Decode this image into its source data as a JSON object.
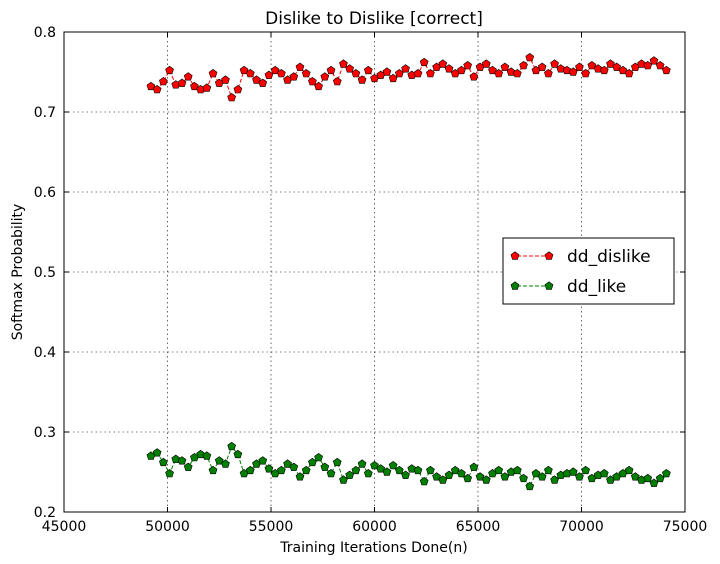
{
  "chart_data": {
    "type": "line",
    "title": "Dislike to Dislike [correct]",
    "xlabel": "Training Iterations Done(n)",
    "ylabel": "Softmax Probability",
    "xlim": [
      45000,
      75000
    ],
    "ylim": [
      0.2,
      0.8
    ],
    "xticks": [
      45000,
      50000,
      55000,
      60000,
      65000,
      70000,
      75000
    ],
    "yticks": [
      0.2,
      0.3,
      0.4,
      0.5,
      0.6,
      0.7,
      0.8
    ],
    "xtick_labels": [
      "45000",
      "50000",
      "55000",
      "60000",
      "65000",
      "70000",
      "75000"
    ],
    "ytick_labels": [
      "0.2",
      "0.3",
      "0.4",
      "0.5",
      "0.6",
      "0.7",
      "0.8"
    ],
    "grid": true,
    "legend_position": "center-right",
    "x": [
      49200,
      49500,
      49800,
      50100,
      50400,
      50700,
      51000,
      51300,
      51600,
      51900,
      52200,
      52500,
      52800,
      53100,
      53400,
      53700,
      54000,
      54300,
      54600,
      54900,
      55200,
      55500,
      55800,
      56100,
      56400,
      56700,
      57000,
      57300,
      57600,
      57900,
      58200,
      58500,
      58800,
      59100,
      59400,
      59700,
      60000,
      60300,
      60600,
      60900,
      61200,
      61500,
      61800,
      62100,
      62400,
      62700,
      63000,
      63300,
      63600,
      63900,
      64200,
      64500,
      64800,
      65100,
      65400,
      65700,
      66000,
      66300,
      66600,
      66900,
      67200,
      67500,
      67800,
      68100,
      68400,
      68700,
      69000,
      69300,
      69600,
      69900,
      70200,
      70500,
      70800,
      71100,
      71400,
      71700,
      72000,
      72300,
      72600,
      72900,
      73200,
      73500,
      73800,
      74100
    ],
    "series": [
      {
        "name": "dd_dislike",
        "color": "#ff0000",
        "values": [
          0.732,
          0.728,
          0.738,
          0.752,
          0.734,
          0.736,
          0.744,
          0.732,
          0.728,
          0.73,
          0.748,
          0.736,
          0.74,
          0.718,
          0.728,
          0.752,
          0.748,
          0.74,
          0.736,
          0.746,
          0.752,
          0.748,
          0.74,
          0.744,
          0.756,
          0.748,
          0.738,
          0.732,
          0.744,
          0.752,
          0.738,
          0.76,
          0.754,
          0.748,
          0.74,
          0.752,
          0.742,
          0.746,
          0.75,
          0.742,
          0.748,
          0.754,
          0.746,
          0.748,
          0.762,
          0.748,
          0.756,
          0.76,
          0.754,
          0.748,
          0.752,
          0.758,
          0.744,
          0.756,
          0.76,
          0.752,
          0.748,
          0.756,
          0.75,
          0.748,
          0.758,
          0.768,
          0.752,
          0.756,
          0.748,
          0.76,
          0.754,
          0.752,
          0.75,
          0.756,
          0.748,
          0.758,
          0.754,
          0.752,
          0.76,
          0.756,
          0.752,
          0.748,
          0.756,
          0.76,
          0.758,
          0.764,
          0.758,
          0.752
        ]
      },
      {
        "name": "dd_like",
        "color": "#007f00",
        "values": [
          0.27,
          0.274,
          0.262,
          0.248,
          0.266,
          0.264,
          0.256,
          0.268,
          0.272,
          0.27,
          0.252,
          0.264,
          0.26,
          0.282,
          0.272,
          0.248,
          0.252,
          0.26,
          0.264,
          0.254,
          0.248,
          0.252,
          0.26,
          0.256,
          0.244,
          0.252,
          0.262,
          0.268,
          0.256,
          0.248,
          0.262,
          0.24,
          0.246,
          0.252,
          0.26,
          0.248,
          0.258,
          0.254,
          0.25,
          0.258,
          0.252,
          0.246,
          0.254,
          0.252,
          0.238,
          0.252,
          0.244,
          0.24,
          0.246,
          0.252,
          0.248,
          0.242,
          0.256,
          0.244,
          0.24,
          0.248,
          0.252,
          0.244,
          0.25,
          0.252,
          0.242,
          0.232,
          0.248,
          0.244,
          0.252,
          0.24,
          0.246,
          0.248,
          0.25,
          0.244,
          0.252,
          0.242,
          0.246,
          0.248,
          0.24,
          0.244,
          0.248,
          0.252,
          0.244,
          0.24,
          0.242,
          0.236,
          0.242,
          0.248
        ]
      }
    ]
  }
}
